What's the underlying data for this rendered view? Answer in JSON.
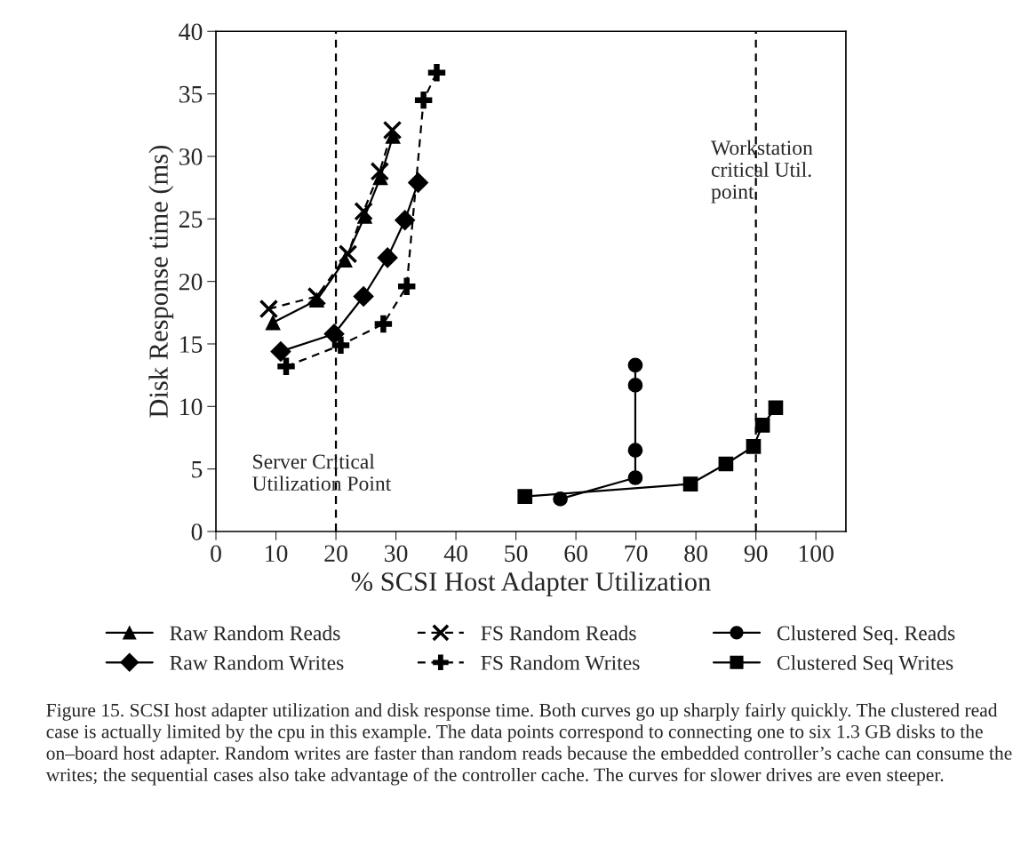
{
  "chart_data": {
    "type": "line",
    "xlabel": "% SCSI Host Adapter Utilization",
    "ylabel": "Disk Response time (ms)",
    "xlim": [
      0,
      105
    ],
    "xticks": [
      0,
      10,
      20,
      30,
      40,
      50,
      60,
      70,
      80,
      90,
      100
    ],
    "ylim": [
      0,
      40
    ],
    "yticks": [
      0,
      5,
      10,
      15,
      20,
      25,
      30,
      35,
      40
    ],
    "grid": false,
    "legend": "bottom",
    "series": [
      {
        "name": "Raw Random Reads",
        "color": "#000000",
        "marker": "triangle",
        "line_style": "solid",
        "x": [
          9.5,
          16.8,
          21.5,
          24.8,
          27.4,
          29.5
        ],
        "values": [
          16.7,
          18.5,
          21.7,
          25.2,
          28.3,
          31.6
        ]
      },
      {
        "name": "Raw Random Writes",
        "color": "#000000",
        "marker": "diamond",
        "line_style": "solid",
        "x": [
          10.8,
          19.7,
          24.6,
          28.6,
          31.5,
          33.7
        ],
        "values": [
          14.4,
          15.8,
          18.8,
          21.9,
          24.9,
          27.9
        ]
      },
      {
        "name": "FS Random Reads",
        "color": "#000000",
        "marker": "cross",
        "line_style": "dashed",
        "x": [
          8.8,
          16.8,
          22.0,
          24.6,
          27.3,
          29.4
        ],
        "values": [
          17.8,
          18.8,
          22.2,
          25.6,
          28.8,
          32.1
        ]
      },
      {
        "name": "FS Random Writes",
        "color": "#000000",
        "marker": "cross",
        "line_style": "dashed",
        "x": [
          11.7,
          20.8,
          27.9,
          31.8,
          34.6,
          36.8
        ],
        "values": [
          13.2,
          14.9,
          16.6,
          19.6,
          34.5,
          36.7
        ]
      },
      {
        "name": "Clustered Seq. Reads",
        "color": "#000000",
        "marker": "circle",
        "line_style": "solid",
        "x": [
          57.4,
          69.9,
          69.9,
          69.9,
          69.9
        ],
        "values": [
          2.6,
          4.3,
          6.5,
          11.7,
          13.3
        ]
      },
      {
        "name": "Clustered Seq Writes",
        "color": "#000000",
        "marker": "square",
        "line_style": "solid",
        "x": [
          51.5,
          79.1,
          85.0,
          89.6,
          91.1,
          93.3
        ],
        "values": [
          2.8,
          3.8,
          5.4,
          6.8,
          8.5,
          9.9
        ]
      }
    ],
    "ref_lines": [
      {
        "axis": "x",
        "value": 20,
        "label": "Server Critical\nUtilization Point",
        "color": "#000000",
        "line_style": "dashed"
      },
      {
        "axis": "x",
        "value": 90,
        "label": "Workstation\ncritical Util.\npoint",
        "color": "#000000",
        "line_style": "dashed"
      }
    ],
    "annotations": [
      "Figure 15. SCSI host adapter utilization and disk response time. Both curves go up sharply fairly quickly. The clustered read case is actually limited by the cpu in this example. The data points correspond to connecting one to six 1.3 GB disks to the on–board host adapter. Random writes are faster than random reads because the embedded controller’s cache can consume the writes; the sequential cases also take advantage of the controller cache. The curves for slower drives are even steeper."
    ]
  }
}
